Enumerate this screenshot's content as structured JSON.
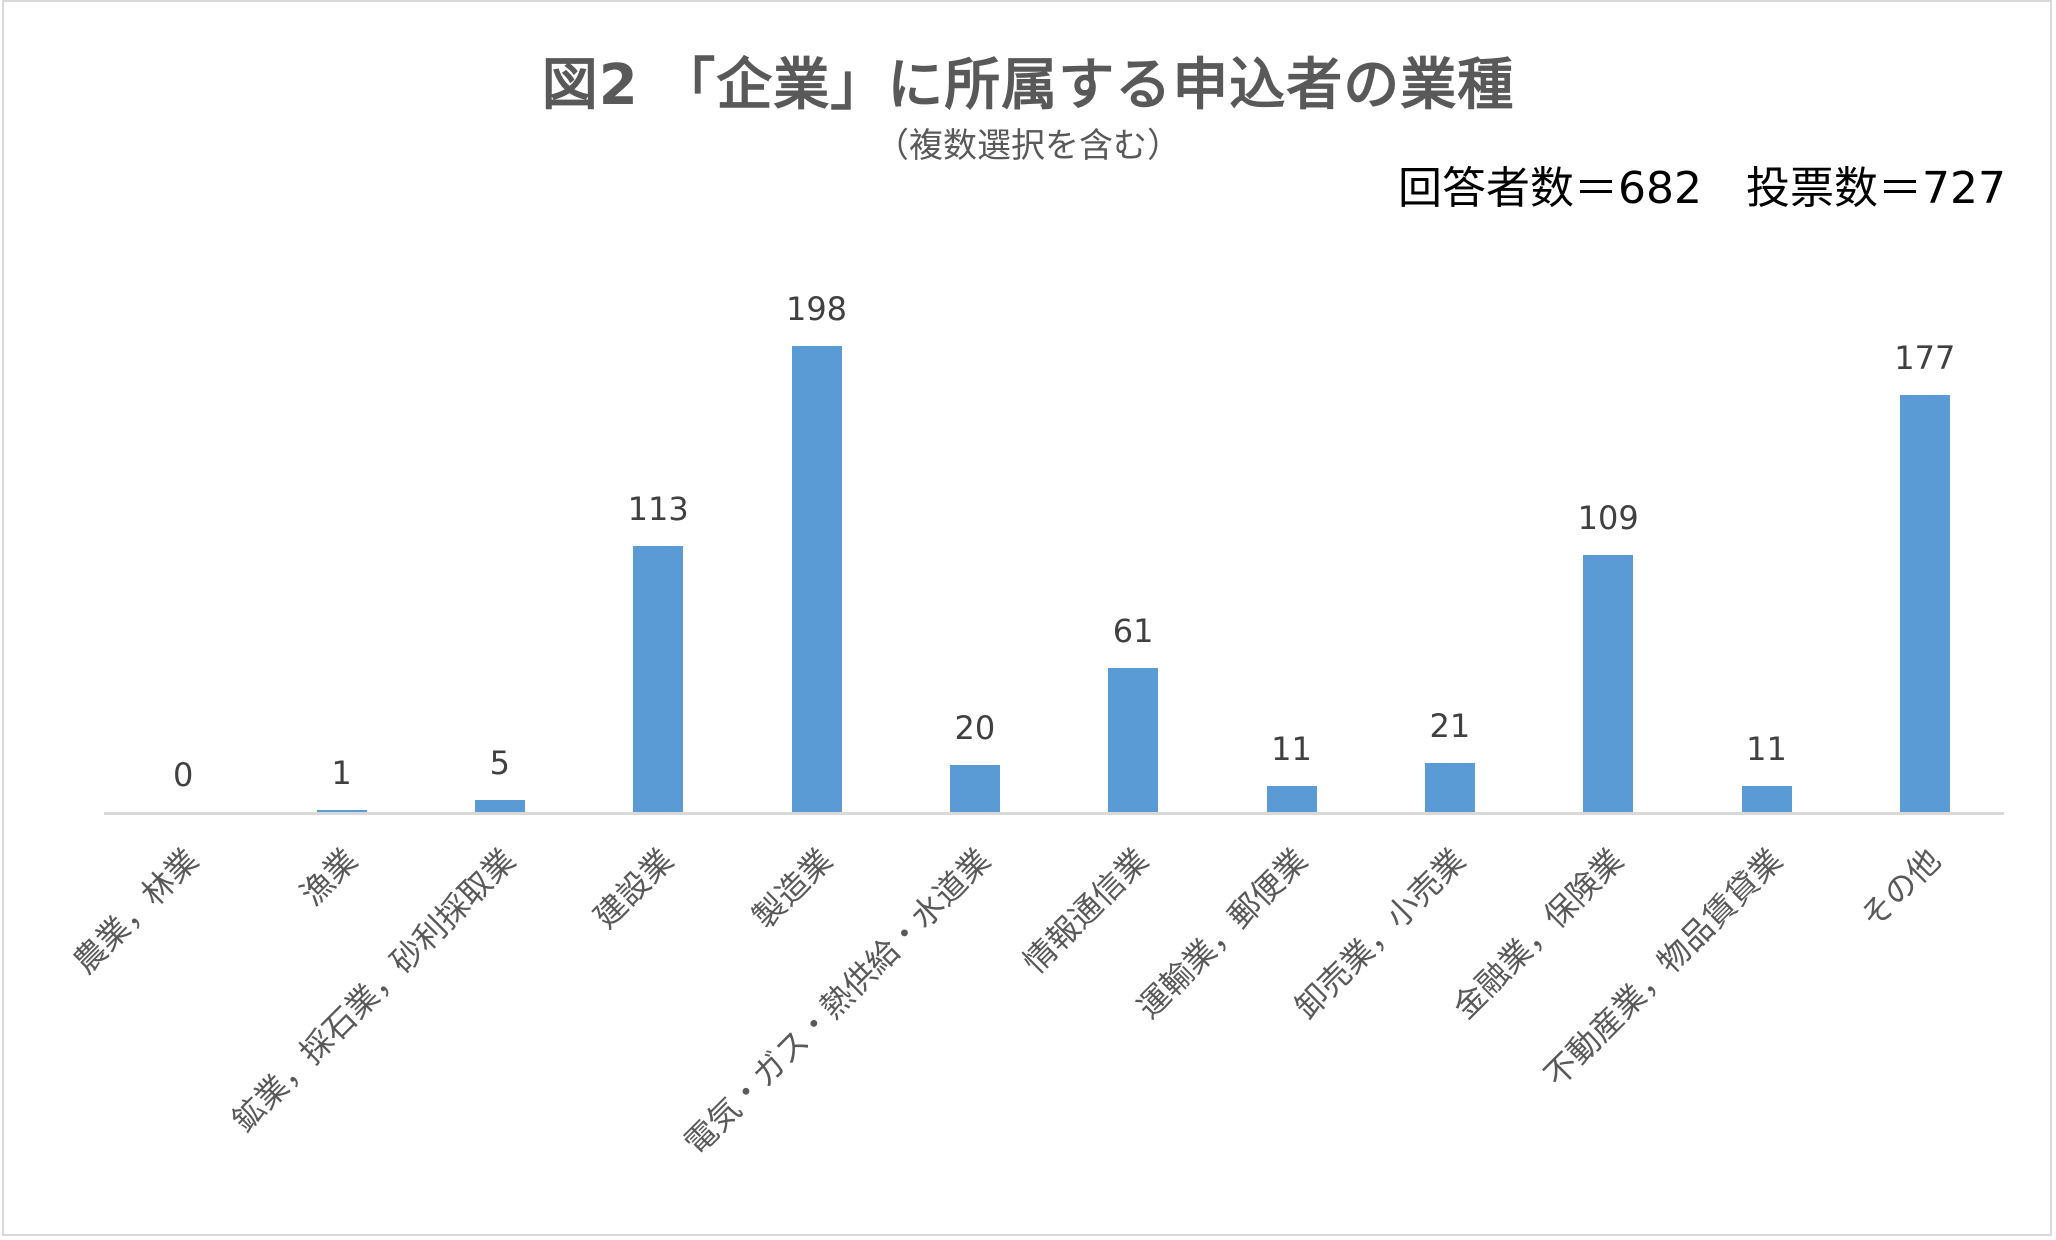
{
  "chart": {
    "title": "図2 「企業」に所属する申込者の業種",
    "subtitle": "（複数選択を含む）",
    "stats": "回答者数＝682　投票数＝727",
    "bar_color": "#5b9bd5"
  },
  "chart_data": {
    "type": "bar",
    "title": "図2 「企業」に所属する申込者の業種",
    "subtitle": "（複数選択を含む）",
    "annotation": "回答者数＝682　投票数＝727",
    "categories": [
      "農業，林業",
      "漁業",
      "鉱業，採石業，砂利採取業",
      "建設業",
      "製造業",
      "電気・ガス・熱供給・水道業",
      "情報通信業",
      "運輸業，郵便業",
      "卸売業，小売業",
      "金融業，保険業",
      "不動産業，物品賃貸業",
      "その他"
    ],
    "values": [
      0,
      1,
      5,
      113,
      198,
      20,
      61,
      11,
      21,
      109,
      11,
      177
    ],
    "xlabel": "",
    "ylabel": "",
    "ylim": [
      0,
      200
    ],
    "grid": false,
    "legend": null,
    "data_labels": true
  }
}
